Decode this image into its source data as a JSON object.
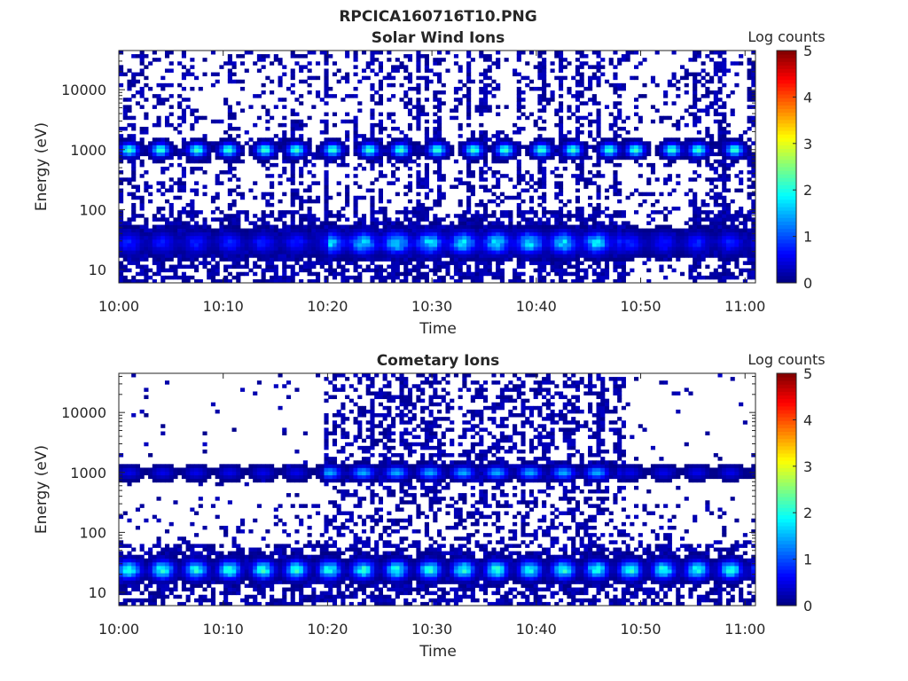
{
  "figure": {
    "title": "RPCICA160716T10.PNG"
  },
  "chart_data": [
    {
      "type": "heatmap",
      "title": "Solar Wind Ions",
      "xlabel": "Time",
      "ylabel": "Energy (eV)",
      "x_ticks": [
        "10:00",
        "10:10",
        "10:20",
        "10:30",
        "10:40",
        "10:50",
        "11:00"
      ],
      "x_range": [
        "10:00",
        "11:01"
      ],
      "y_scale": "log",
      "y_ticks": [
        10,
        100,
        1000,
        10000
      ],
      "y_ticklabels": [
        "10",
        "100",
        "1000",
        "10000"
      ],
      "y_range": [
        6,
        45000
      ],
      "colorbar": {
        "label": "Log counts",
        "range": [
          0,
          5
        ],
        "ticks": [
          "0",
          "1",
          "2",
          "3",
          "4",
          "5"
        ],
        "colormap": "jet"
      },
      "features": {
        "ion_beam": {
          "energy_eV": 1000,
          "peak_log_counts": 2.2,
          "pulse_period_min": 3.2,
          "minutes": [
            1,
            4,
            7.5,
            10.5,
            14,
            17,
            20.5,
            24,
            27,
            30.5,
            34,
            37,
            40.5,
            43.5,
            47,
            49.5,
            53,
            55.5,
            59
          ]
        },
        "low_energy_band": {
          "energy_eV": [
            15,
            35
          ],
          "peak_log_counts": 2.0,
          "active_from_min": 20,
          "active_to_min": 48
        },
        "data_gap_sparse_interval_min": [
          48.5,
          54.5
        ]
      }
    },
    {
      "type": "heatmap",
      "title": "Cometary Ions",
      "xlabel": "Time",
      "ylabel": "Energy (eV)",
      "x_ticks": [
        "10:00",
        "10:10",
        "10:20",
        "10:30",
        "10:40",
        "10:50",
        "11:00"
      ],
      "x_range": [
        "10:00",
        "11:01"
      ],
      "y_scale": "log",
      "y_ticks": [
        10,
        100,
        1000,
        10000
      ],
      "y_ticklabels": [
        "10",
        "100",
        "1000",
        "10000"
      ],
      "y_range": [
        6,
        45000
      ],
      "colorbar": {
        "label": "Log counts",
        "range": [
          0,
          5
        ],
        "ticks": [
          "0",
          "1",
          "2",
          "3",
          "4",
          "5"
        ],
        "colormap": "jet"
      },
      "features": {
        "ion_beam": {
          "energy_eV": 1000,
          "peak_log_counts": 1.5,
          "active_from_min": 19.5,
          "active_to_min": 48
        },
        "low_energy_band": {
          "energy_eV": [
            15,
            35
          ],
          "peak_log_counts": 2.3,
          "pulse_period_min": 3.2
        },
        "high_energy_background_interval_min": [
          19.5,
          48.5
        ]
      }
    }
  ]
}
